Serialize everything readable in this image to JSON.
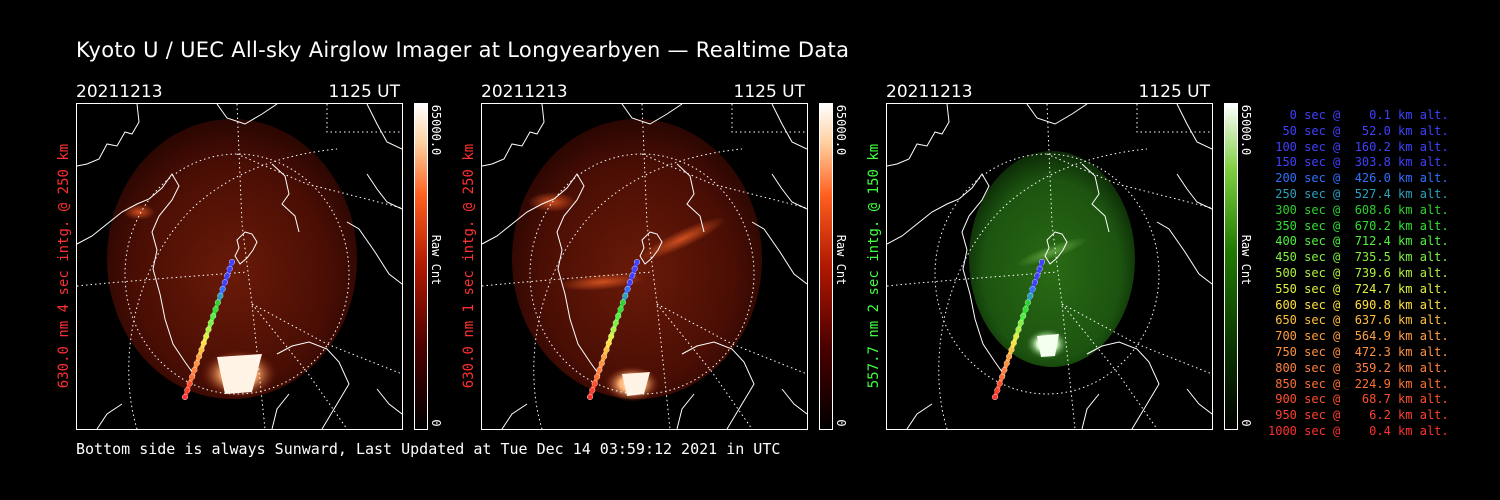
{
  "title": "Kyoto U / UEC All-sky Airglow Imager at Longyearbyen — Realtime Data",
  "footer": "Bottom side is always Sunward, Last Updated at Tue Dec 14 03:59:12 2021 in UTC",
  "panels": [
    {
      "date": "20211213",
      "time": "1125 UT",
      "ylabel": "630.0 nm 4 sec intg. @ 250 km",
      "label_color": "#ff3030",
      "cbar_max": "65000.0",
      "cbar_min": "0",
      "cbar_title": "Raw Cnt",
      "colormap": "red"
    },
    {
      "date": "20211213",
      "time": "1125 UT",
      "ylabel": "630.0 nm 1 sec intg. @ 250 km",
      "label_color": "#ff3030",
      "cbar_max": "65000.0",
      "cbar_min": "0",
      "cbar_title": "Raw Cnt",
      "colormap": "red"
    },
    {
      "date": "20211213",
      "time": "1125 UT",
      "ylabel": "557.7 nm 2 sec intg. @ 150 km",
      "label_color": "#40ff40",
      "cbar_max": "65000.0",
      "cbar_min": "0",
      "cbar_title": "Raw Cnt",
      "colormap": "green"
    }
  ],
  "legend": [
    {
      "text": "   0 sec @    0.1 km alt.",
      "color": "#4040ff"
    },
    {
      "text": "  50 sec @   52.0 km alt.",
      "color": "#4040ff"
    },
    {
      "text": " 100 sec @  160.2 km alt.",
      "color": "#4040ff"
    },
    {
      "text": " 150 sec @  303.8 km alt.",
      "color": "#4040ff"
    },
    {
      "text": " 200 sec @  426.0 km alt.",
      "color": "#3070ff"
    },
    {
      "text": " 250 sec @  527.4 km alt.",
      "color": "#2aa0c0"
    },
    {
      "text": " 300 sec @  608.6 km alt.",
      "color": "#30d030"
    },
    {
      "text": " 350 sec @  670.2 km alt.",
      "color": "#30e030"
    },
    {
      "text": " 400 sec @  712.4 km alt.",
      "color": "#50f040"
    },
    {
      "text": " 450 sec @  735.5 km alt.",
      "color": "#80f040"
    },
    {
      "text": " 500 sec @  739.6 km alt.",
      "color": "#b0f040"
    },
    {
      "text": " 550 sec @  724.7 km alt.",
      "color": "#e0f040"
    },
    {
      "text": " 600 sec @  690.8 km alt.",
      "color": "#ffe040"
    },
    {
      "text": " 650 sec @  637.6 km alt.",
      "color": "#ffc040"
    },
    {
      "text": " 700 sec @  564.9 km alt.",
      "color": "#ffa040"
    },
    {
      "text": " 750 sec @  472.3 km alt.",
      "color": "#ff9040"
    },
    {
      "text": " 800 sec @  359.2 km alt.",
      "color": "#ff8040"
    },
    {
      "text": " 850 sec @  224.9 km alt.",
      "color": "#ff7030"
    },
    {
      "text": " 900 sec @   68.7 km alt.",
      "color": "#ff5030"
    },
    {
      "text": " 950 sec @    6.2 km alt.",
      "color": "#ff4030"
    },
    {
      "text": "1000 sec @    0.4 km alt.",
      "color": "#ff3030"
    }
  ]
}
